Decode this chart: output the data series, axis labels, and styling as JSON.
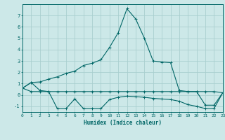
{
  "title": "",
  "xlabel": "Humidex (Indice chaleur)",
  "background_color": "#cce8e8",
  "grid_color": "#aacfcf",
  "line_color": "#006666",
  "xlim": [
    0,
    23
  ],
  "ylim": [
    -1.5,
    8.0
  ],
  "yticks": [
    -1,
    0,
    1,
    2,
    3,
    4,
    5,
    6,
    7
  ],
  "xticks": [
    0,
    1,
    2,
    3,
    4,
    5,
    6,
    7,
    8,
    9,
    10,
    11,
    12,
    13,
    14,
    15,
    16,
    17,
    18,
    19,
    20,
    21,
    22,
    23
  ],
  "line1_x": [
    0,
    1,
    2,
    3,
    4,
    5,
    6,
    7,
    8,
    9,
    10,
    11,
    12,
    13,
    14,
    15,
    16,
    17,
    18,
    19,
    20,
    21,
    22,
    23
  ],
  "line1_y": [
    0.6,
    1.1,
    1.15,
    1.4,
    1.6,
    1.9,
    2.1,
    2.6,
    2.8,
    3.1,
    4.2,
    5.5,
    7.6,
    6.7,
    5.0,
    3.0,
    2.9,
    2.85,
    0.4,
    0.3,
    0.3,
    -0.9,
    -0.9,
    0.2
  ],
  "line2_x": [
    0,
    1,
    2,
    3,
    4,
    5,
    6,
    7,
    8,
    9,
    10,
    11,
    12,
    13,
    14,
    15,
    16,
    17,
    18,
    19,
    20,
    21,
    22,
    23
  ],
  "line2_y": [
    0.6,
    1.1,
    0.4,
    0.3,
    0.3,
    0.3,
    0.3,
    0.3,
    0.3,
    0.3,
    0.3,
    0.3,
    0.3,
    0.3,
    0.3,
    0.3,
    0.3,
    0.3,
    0.3,
    0.3,
    0.3,
    0.3,
    0.3,
    0.2
  ],
  "line3_x": [
    0,
    1,
    2,
    3,
    4,
    5,
    6,
    7,
    8,
    9,
    10,
    11,
    12,
    13,
    14,
    15,
    16,
    17,
    18,
    19,
    20,
    21,
    22,
    23
  ],
  "line3_y": [
    0.6,
    0.3,
    0.3,
    0.3,
    -1.2,
    -1.2,
    -0.35,
    -1.2,
    -1.2,
    -1.2,
    -0.4,
    -0.2,
    -0.1,
    -0.15,
    -0.2,
    -0.3,
    -0.35,
    -0.4,
    -0.55,
    -0.85,
    -1.0,
    -1.2,
    -1.2,
    0.2
  ]
}
